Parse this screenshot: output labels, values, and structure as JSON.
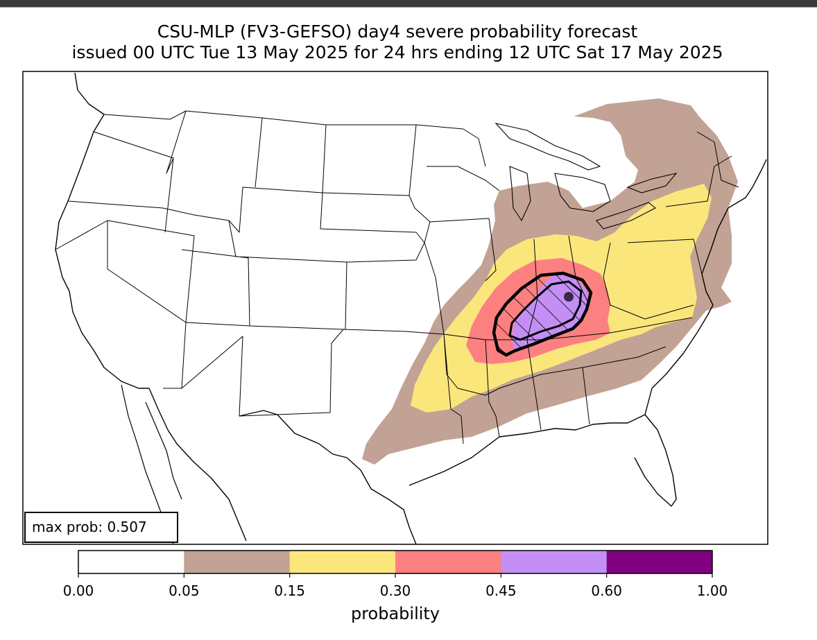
{
  "title": {
    "line1": "CSU-MLP (FV3-GEFSO) day4 severe probability forecast",
    "line2": "issued 00 UTC Tue 13 May 2025 for 24 hrs ending 12 UTC Sat 17 May 2025"
  },
  "annotation": {
    "max_prob": "max prob: 0.507"
  },
  "legend": {
    "label": "probability",
    "ticks": [
      "0.00",
      "0.05",
      "0.15",
      "0.30",
      "0.45",
      "0.60",
      "1.00"
    ],
    "bins": [
      {
        "from": 0.0,
        "to": 0.05,
        "color": "#ffffff"
      },
      {
        "from": 0.05,
        "to": 0.15,
        "color": "#c2a294"
      },
      {
        "from": 0.15,
        "to": 0.3,
        "color": "#fbe67c"
      },
      {
        "from": 0.3,
        "to": 0.45,
        "color": "#fc8080"
      },
      {
        "from": 0.45,
        "to": 0.6,
        "color": "#c48ff4"
      },
      {
        "from": 0.6,
        "to": 1.0,
        "color": "#810080"
      }
    ]
  },
  "map": {
    "region": "Contiguous United States",
    "significant_severe_hatching": true,
    "max_point_marker": true,
    "colors": {
      "prob_05": "#c2a294",
      "prob_15": "#fbe67c",
      "prob_30": "#fc8080",
      "prob_45": "#c48ff4",
      "outline": "#000000"
    }
  }
}
